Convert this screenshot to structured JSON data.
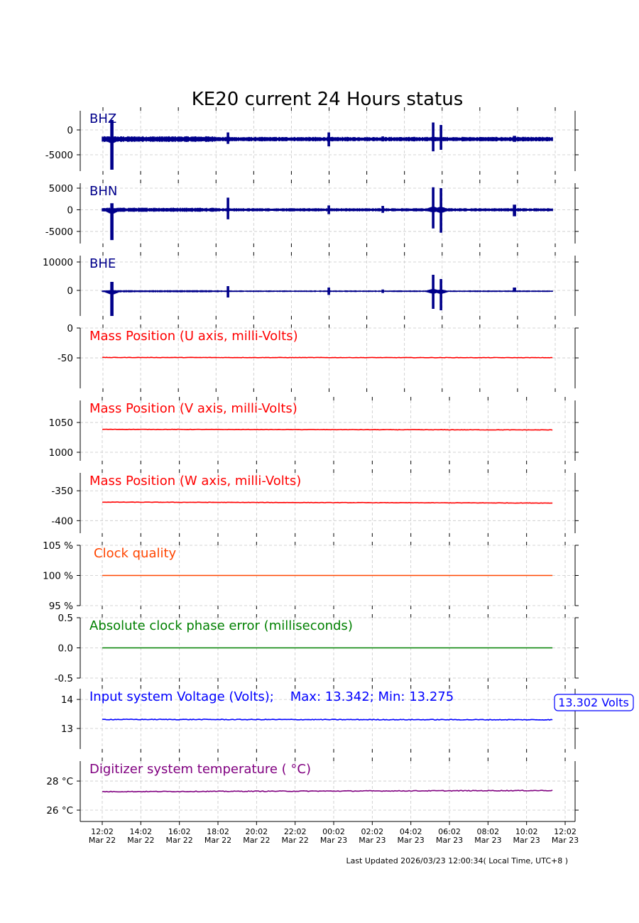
{
  "title": "KE20 current 24 Hours status",
  "footer": "Last Updated 2026/03/23 12:00:34( Local Time, UTC+8 )",
  "chart_data": {
    "type": "line",
    "x_unit": "hours since 12:02 Mar 22",
    "xlim": [
      -1.14,
      24.44
    ],
    "data_range": [
      0,
      23.3
    ],
    "x_ticks": [
      {
        "t": 0,
        "time": "12:02",
        "date": "Mar 22"
      },
      {
        "t": 2,
        "time": "14:02",
        "date": "Mar 22"
      },
      {
        "t": 4,
        "time": "16:02",
        "date": "Mar 22"
      },
      {
        "t": 6,
        "time": "18:02",
        "date": "Mar 22"
      },
      {
        "t": 8,
        "time": "20:02",
        "date": "Mar 22"
      },
      {
        "t": 10,
        "time": "22:02",
        "date": "Mar 22"
      },
      {
        "t": 12,
        "time": "00:02",
        "date": "Mar 23"
      },
      {
        "t": 14,
        "time": "02:02",
        "date": "Mar 23"
      },
      {
        "t": 16,
        "time": "04:02",
        "date": "Mar 23"
      },
      {
        "t": 18,
        "time": "06:02",
        "date": "Mar 23"
      },
      {
        "t": 20,
        "time": "08:02",
        "date": "Mar 23"
      },
      {
        "t": 22,
        "time": "10:02",
        "date": "Mar 23"
      },
      {
        "t": 24,
        "time": "12:02",
        "date": "Mar 23"
      }
    ],
    "panels": [
      {
        "id": "bhz",
        "label": "BHZ",
        "color": "#00008b",
        "kind": "seismic",
        "ylim": [
          -8286,
          3857
        ],
        "yticks": [
          {
            "v": 0,
            "text": "0"
          },
          {
            "v": -5000,
            "text": "-5000"
          }
        ],
        "baseline": -1850,
        "noise": 450,
        "events": [
          {
            "t": 0.5,
            "max": 2000,
            "min": -8000
          },
          {
            "t": 6.5,
            "max": -500,
            "min": -2800
          },
          {
            "t": 11.7,
            "max": -500,
            "min": -3300
          },
          {
            "t": 14.5,
            "max": -1300,
            "min": -2300
          },
          {
            "t": 17.1,
            "max": 1500,
            "min": -4300
          },
          {
            "t": 17.5,
            "max": 1000,
            "min": -4000
          },
          {
            "t": 21.3,
            "max": -1200,
            "min": -2400
          }
        ]
      },
      {
        "id": "bhn",
        "label": "BHN",
        "color": "#00008b",
        "kind": "seismic",
        "ylim": [
          -7800,
          6150
        ],
        "yticks": [
          {
            "v": 5000,
            "text": "5000"
          },
          {
            "v": 0,
            "text": "0"
          },
          {
            "v": -5000,
            "text": "-5000"
          }
        ],
        "baseline": 0,
        "noise": 380,
        "events": [
          {
            "t": 0.5,
            "max": 1500,
            "min": -7000
          },
          {
            "t": 6.5,
            "max": 2800,
            "min": -2200
          },
          {
            "t": 11.7,
            "max": 1000,
            "min": -1000
          },
          {
            "t": 14.5,
            "max": 900,
            "min": -700
          },
          {
            "t": 17.1,
            "max": 5200,
            "min": -4300
          },
          {
            "t": 17.5,
            "max": 5000,
            "min": -5300
          },
          {
            "t": 21.3,
            "max": 1200,
            "min": -1500
          }
        ]
      },
      {
        "id": "bhe",
        "label": "BHE",
        "color": "#00008b",
        "kind": "seismic",
        "ylim": [
          -9000,
          12250
        ],
        "yticks": [
          {
            "v": 10000,
            "text": "10000"
          },
          {
            "v": 0,
            "text": "0"
          }
        ],
        "baseline": -300,
        "noise": 300,
        "events": [
          {
            "t": 0.5,
            "max": 3000,
            "min": -9000
          },
          {
            "t": 6.5,
            "max": 1500,
            "min": -2500
          },
          {
            "t": 11.7,
            "max": 1000,
            "min": -1600
          },
          {
            "t": 14.5,
            "max": 300,
            "min": -900
          },
          {
            "t": 17.1,
            "max": 5500,
            "min": -6500
          },
          {
            "t": 17.5,
            "max": 4000,
            "min": -7000
          },
          {
            "t": 21.3,
            "max": 1000,
            "min": -600
          }
        ]
      },
      {
        "id": "mass-u",
        "label": "Mass Position (U axis, milli-Volts)",
        "color": "#ff0000",
        "kind": "line",
        "ylim": [
          -101,
          0
        ],
        "yticks": [
          {
            "v": 0,
            "text": "0"
          },
          {
            "v": -50,
            "text": "-50"
          }
        ],
        "start": -49.3,
        "end": -49.6,
        "noise": 0.3
      },
      {
        "id": "mass-v",
        "label": "Mass Position (V axis, milli-Volts)",
        "color": "#ff0000",
        "kind": "line",
        "ylim": [
          985.7,
          1087
        ],
        "yticks": [
          {
            "v": 1050,
            "text": "1050"
          },
          {
            "v": 1000,
            "text": "1000"
          }
        ],
        "start": 1038.5,
        "end": 1037.5,
        "noise": 0.3
      },
      {
        "id": "mass-w",
        "label": "Mass Position (W axis, milli-Volts)",
        "color": "#ff0000",
        "kind": "line",
        "ylim": [
          -421,
          -320
        ],
        "yticks": [
          {
            "v": -350,
            "text": "-350"
          },
          {
            "v": -400,
            "text": "-400"
          }
        ],
        "start": -369,
        "end": -370.5,
        "noise": 0.3
      },
      {
        "id": "clock-quality",
        "label": "Clock quality",
        "color": "#ff4500",
        "kind": "line",
        "ylim": [
          95,
          105
        ],
        "yticks": [
          {
            "v": 105,
            "text": "105 %"
          },
          {
            "v": 100,
            "text": "100 %"
          },
          {
            "v": 95,
            "text": "95 %"
          }
        ],
        "start": 100,
        "end": 100,
        "noise": 0
      },
      {
        "id": "clock-phase",
        "label": "Absolute clock phase error (milliseconds)",
        "color": "#008000",
        "kind": "line",
        "ylim": [
          -0.5,
          0.5
        ],
        "yticks": [
          {
            "v": 0.5,
            "text": "0.5"
          },
          {
            "v": 0,
            "text": "0.0"
          },
          {
            "v": -0.5,
            "text": "-0.5"
          }
        ],
        "start": 0,
        "end": 0,
        "noise": 0
      },
      {
        "id": "voltage",
        "label": "Input system Voltage (Volts);    Max: 13.342; Min: 13.275",
        "color": "#0000ff",
        "kind": "line",
        "ylim": [
          12.29,
          14.37
        ],
        "yticks": [
          {
            "v": 14,
            "text": "14"
          },
          {
            "v": 13,
            "text": "13"
          }
        ],
        "start": 13.31,
        "end": 13.3,
        "noise": 0.012,
        "annotation": "13.302 Volts"
      },
      {
        "id": "temperature",
        "label": "Digitizer system temperature ( °C)",
        "color": "#800080",
        "kind": "line",
        "ylim": [
          25.22,
          29.37
        ],
        "yticks": [
          {
            "v": 28,
            "text": "28 °C"
          },
          {
            "v": 26,
            "text": "26 °C"
          }
        ],
        "start": 27.27,
        "end": 27.35,
        "noise": 0.025
      }
    ]
  }
}
